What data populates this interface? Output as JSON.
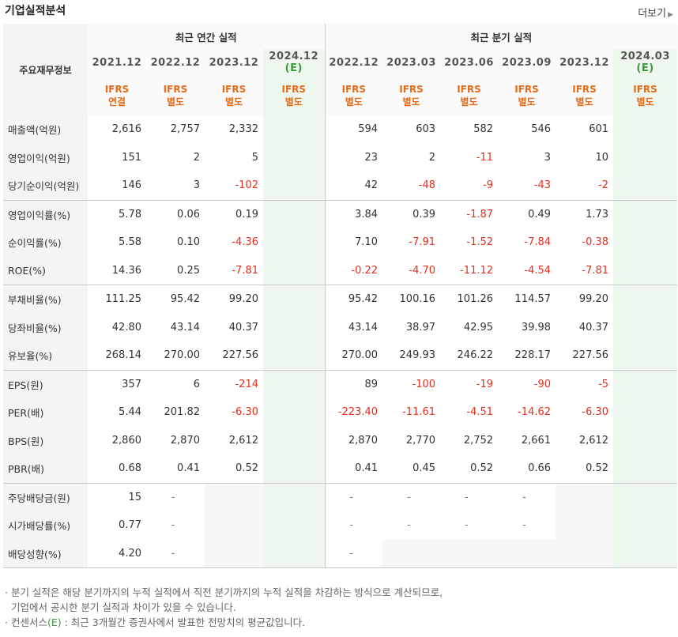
{
  "title": "기업실적분석",
  "more_label": "더보기",
  "header": {
    "row_head": "주요재무정보",
    "annual_group": "최근 연간 실적",
    "quarter_group": "최근 분기 실적",
    "annual_cols": [
      {
        "period": "2021.12",
        "ifrs1": "IFRS",
        "ifrs2": "연결",
        "est": false
      },
      {
        "period": "2022.12",
        "ifrs1": "IFRS",
        "ifrs2": "별도",
        "est": false
      },
      {
        "period": "2023.12",
        "ifrs1": "IFRS",
        "ifrs2": "별도",
        "est": false
      },
      {
        "period": "2024.12",
        "est_mark": "(E)",
        "ifrs1": "IFRS",
        "ifrs2": "별도",
        "est": true
      }
    ],
    "quarter_cols": [
      {
        "period": "2022.12",
        "ifrs1": "IFRS",
        "ifrs2": "별도",
        "est": false
      },
      {
        "period": "2023.03",
        "ifrs1": "IFRS",
        "ifrs2": "별도",
        "est": false
      },
      {
        "period": "2023.06",
        "ifrs1": "IFRS",
        "ifrs2": "별도",
        "est": false
      },
      {
        "period": "2023.09",
        "ifrs1": "IFRS",
        "ifrs2": "별도",
        "est": false
      },
      {
        "period": "2023.12",
        "ifrs1": "IFRS",
        "ifrs2": "별도",
        "est": false
      },
      {
        "period": "2024.03",
        "est_mark": "(E)",
        "ifrs1": "IFRS",
        "ifrs2": "별도",
        "est": true
      }
    ]
  },
  "rows": [
    {
      "label": "매출액(억원)",
      "annual": [
        "2,616",
        "2,757",
        "2,332",
        ""
      ],
      "quarter": [
        "594",
        "603",
        "582",
        "546",
        "601",
        ""
      ]
    },
    {
      "label": "영업이익(억원)",
      "annual": [
        "151",
        "2",
        "5",
        ""
      ],
      "quarter": [
        "23",
        "2",
        "-11",
        "3",
        "10",
        ""
      ]
    },
    {
      "label": "당기순이익(억원)",
      "annual": [
        "146",
        "3",
        "-102",
        ""
      ],
      "quarter": [
        "42",
        "-48",
        "-9",
        "-43",
        "-2",
        ""
      ],
      "group_end": true
    },
    {
      "label": "영업이익률(%)",
      "annual": [
        "5.78",
        "0.06",
        "0.19",
        ""
      ],
      "quarter": [
        "3.84",
        "0.39",
        "-1.87",
        "0.49",
        "1.73",
        ""
      ]
    },
    {
      "label": "순이익률(%)",
      "annual": [
        "5.58",
        "0.10",
        "-4.36",
        ""
      ],
      "quarter": [
        "7.10",
        "-7.91",
        "-1.52",
        "-7.84",
        "-0.38",
        ""
      ]
    },
    {
      "label": "ROE(%)",
      "annual": [
        "14.36",
        "0.25",
        "-7.81",
        ""
      ],
      "quarter": [
        "-0.22",
        "-4.70",
        "-11.12",
        "-4.54",
        "-7.81",
        ""
      ],
      "group_end": true
    },
    {
      "label": "부채비율(%)",
      "annual": [
        "111.25",
        "95.42",
        "99.20",
        ""
      ],
      "quarter": [
        "95.42",
        "100.16",
        "101.26",
        "114.57",
        "99.20",
        ""
      ]
    },
    {
      "label": "당좌비율(%)",
      "annual": [
        "42.80",
        "43.14",
        "40.37",
        ""
      ],
      "quarter": [
        "43.14",
        "38.97",
        "42.95",
        "39.98",
        "40.37",
        ""
      ]
    },
    {
      "label": "유보율(%)",
      "annual": [
        "268.14",
        "270.00",
        "227.56",
        ""
      ],
      "quarter": [
        "270.00",
        "249.93",
        "246.22",
        "228.17",
        "227.56",
        ""
      ],
      "group_end": true
    },
    {
      "label": "EPS(원)",
      "annual": [
        "357",
        "6",
        "-214",
        ""
      ],
      "quarter": [
        "89",
        "-100",
        "-19",
        "-90",
        "-5",
        ""
      ]
    },
    {
      "label": "PER(배)",
      "annual": [
        "5.44",
        "201.82",
        "-6.30",
        ""
      ],
      "quarter": [
        "-223.40",
        "-11.61",
        "-4.51",
        "-14.62",
        "-6.30",
        ""
      ]
    },
    {
      "label": "BPS(원)",
      "annual": [
        "2,860",
        "2,870",
        "2,612",
        ""
      ],
      "quarter": [
        "2,870",
        "2,770",
        "2,752",
        "2,661",
        "2,612",
        ""
      ]
    },
    {
      "label": "PBR(배)",
      "annual": [
        "0.68",
        "0.41",
        "0.52",
        ""
      ],
      "quarter": [
        "0.41",
        "0.45",
        "0.52",
        "0.66",
        "0.52",
        ""
      ],
      "group_end": true
    },
    {
      "label": "주당배당금(원)",
      "annual": [
        "15",
        "-",
        "",
        ""
      ],
      "quarter": [
        "-",
        "-",
        "-",
        "-",
        "",
        ""
      ]
    },
    {
      "label": "시가배당률(%)",
      "annual": [
        "0.77",
        "-",
        "",
        ""
      ],
      "quarter": [
        "-",
        "-",
        "-",
        "-",
        "",
        ""
      ]
    },
    {
      "label": "배당성향(%)",
      "annual": [
        "4.20",
        "-",
        "",
        ""
      ],
      "quarter": [
        "-",
        "",
        "",
        "",
        "",
        ""
      ],
      "group_end": true
    }
  ],
  "notes": {
    "line1": "분기 실적은 해당 분기까지의 누적 실적에서 직전 분기까지의 누적 실적을 차감하는 방식으로 계산되므로,",
    "line2": "기업에서 공시한 분기 실적과 차이가 있을 수 있습니다.",
    "line3_prefix": "컨센서스",
    "line3_mark": "(E)",
    "line3_suffix": " : 최근 3개월간 증권사에서 발표한 전망치의 평균값입니다."
  }
}
